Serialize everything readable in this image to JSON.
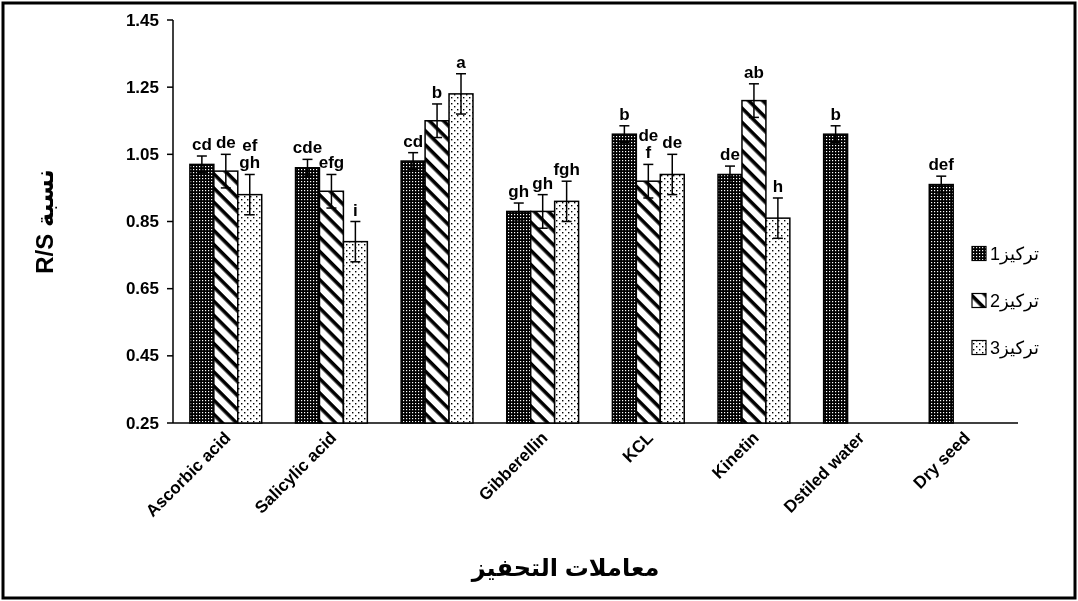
{
  "chart_data": {
    "type": "bar",
    "ylabel": "نسبة R/S",
    "xlabel": "معاملات التحفيز",
    "categories": [
      "Ascorbic acid",
      "Salicylic acid",
      null,
      "Gibberellin",
      "KCL",
      "Kinetin",
      "Dstiled water",
      "Dry seed"
    ],
    "ylim": [
      0.25,
      1.45
    ],
    "yticks": [
      0.25,
      0.45,
      0.65,
      0.85,
      1.05,
      1.25,
      1.45
    ],
    "legend": "right",
    "series": [
      {
        "name": "تركيز1",
        "color": "#000000",
        "values": [
          1.02,
          1.01,
          1.03,
          0.88,
          1.11,
          0.99,
          1.11,
          0.96
        ],
        "errors": [
          0.025,
          0.025,
          0.025,
          0.025,
          0.025,
          0.025,
          0.025,
          0.025
        ],
        "value_labels": [
          "cd",
          "cde",
          "cd",
          "gh",
          "b",
          "de",
          "b",
          "def"
        ]
      },
      {
        "name": "تركيز2",
        "color": "#000000",
        "values": [
          1.0,
          0.94,
          1.15,
          0.88,
          0.97,
          1.21,
          null,
          null
        ],
        "errors": [
          0.05,
          0.05,
          0.05,
          0.05,
          0.05,
          0.05,
          null,
          null
        ],
        "value_labels": [
          "de",
          "efg",
          "b",
          "gh",
          "de\nf",
          "ab",
          null,
          null
        ]
      },
      {
        "name": "تركيز3",
        "color": "#000000",
        "values": [
          0.93,
          0.79,
          1.23,
          0.91,
          0.99,
          0.86,
          null,
          null
        ],
        "errors": [
          0.06,
          0.06,
          0.06,
          0.06,
          0.06,
          0.06,
          null,
          null
        ],
        "value_labels": [
          "ef\ngh",
          "i",
          "a",
          "fgh",
          "de",
          "h",
          null,
          null
        ]
      }
    ]
  }
}
